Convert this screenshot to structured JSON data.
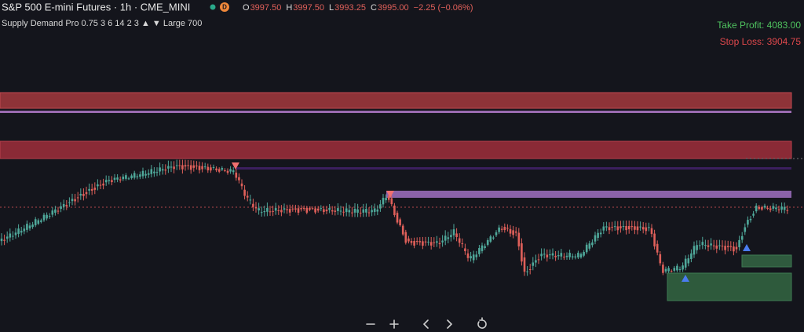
{
  "header": {
    "symbol": "S&P 500 E-mini Futures · 1h · CME_MINI",
    "badge": "D",
    "ohlc": [
      {
        "label": "O",
        "value": "3997.50"
      },
      {
        "label": "H",
        "value": "3997.50"
      },
      {
        "label": "L",
        "value": "3993.25"
      },
      {
        "label": "C",
        "value": "3995.00"
      }
    ],
    "change": "−2.25 (−0.06%)"
  },
  "indicator": "Supply Demand Pro 0.75 3 6 14 2 3 ▲ ▼ Large 700",
  "targets": {
    "take_profit": "Take Profit: 4083.00",
    "stop_loss": "Stop Loss: 3904.75"
  }
}
